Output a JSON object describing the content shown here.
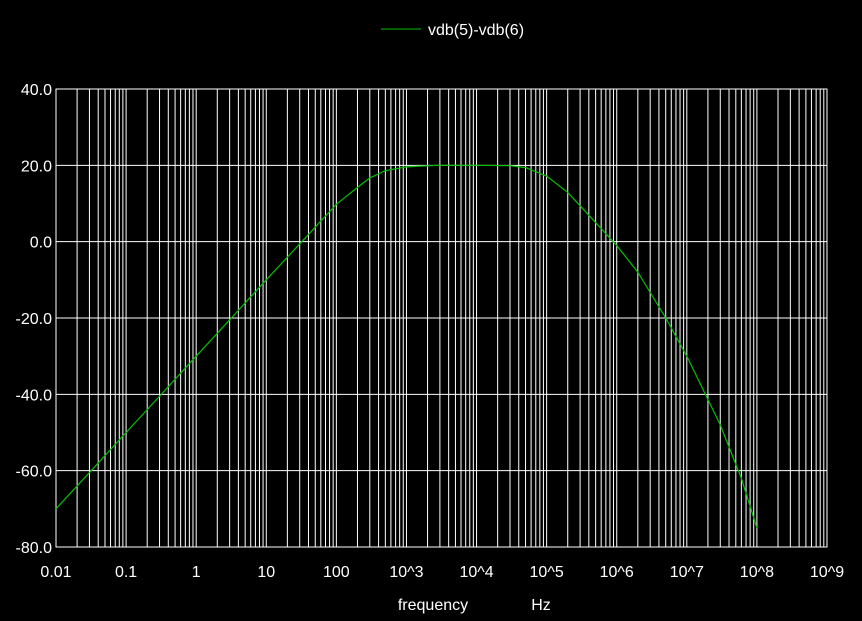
{
  "chart_data": {
    "type": "line",
    "title": "",
    "x_scale": "log",
    "xlabel": "frequency",
    "xunit": "Hz",
    "ylabel": "",
    "xlim": [
      0.01,
      1000000000
    ],
    "ylim": [
      -80,
      40
    ],
    "grid": true,
    "legend_position": "top-center",
    "colors": {
      "background": "#000000",
      "grid": "#ffffff",
      "text": "#ffffff",
      "series": "#00c000"
    },
    "x_ticks": [
      {
        "value": 0.01,
        "label": "0.01"
      },
      {
        "value": 0.1,
        "label": "0.1"
      },
      {
        "value": 1,
        "label": "1"
      },
      {
        "value": 10,
        "label": "10"
      },
      {
        "value": 100,
        "label": "100"
      },
      {
        "value": 1000,
        "label": "10^3"
      },
      {
        "value": 10000,
        "label": "10^4"
      },
      {
        "value": 100000,
        "label": "10^5"
      },
      {
        "value": 1000000,
        "label": "10^6"
      },
      {
        "value": 10000000,
        "label": "10^7"
      },
      {
        "value": 100000000,
        "label": "10^8"
      },
      {
        "value": 1000000000,
        "label": "10^9"
      }
    ],
    "y_ticks": [
      {
        "value": 40,
        "label": "40.0"
      },
      {
        "value": 20,
        "label": "20.0"
      },
      {
        "value": 0,
        "label": "0.0"
      },
      {
        "value": -20,
        "label": "-20.0"
      },
      {
        "value": -40,
        "label": "-40.0"
      },
      {
        "value": -60,
        "label": "-60.0"
      },
      {
        "value": -80,
        "label": "-80.0"
      }
    ],
    "series": [
      {
        "name": "vdb(5)-vdb(6)",
        "x": [
          0.01,
          0.03,
          0.1,
          0.3,
          1,
          3,
          10,
          30,
          100,
          200,
          300,
          500,
          1000,
          1500,
          3000,
          10000,
          30000,
          50000,
          100000,
          200000,
          500000,
          1000000,
          2000000,
          5000000,
          10000000,
          30000000,
          60000000,
          100000000
        ],
        "values": [
          -70.0,
          -60.5,
          -50.0,
          -40.5,
          -30.0,
          -20.5,
          -10.0,
          -0.6,
          9.8,
          14.2,
          16.7,
          18.6,
          19.6,
          19.8,
          20.0,
          20.0,
          19.9,
          19.4,
          17.2,
          12.9,
          5.0,
          -1.0,
          -8.0,
          -20.0,
          -30.0,
          -48.0,
          -62.0,
          -75.0
        ]
      }
    ]
  }
}
